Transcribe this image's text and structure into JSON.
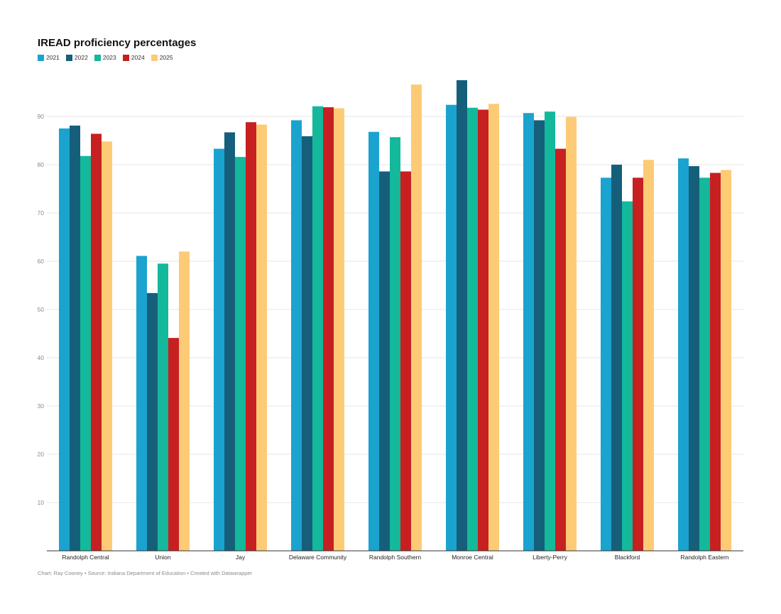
{
  "chart_data": {
    "type": "bar",
    "title": "IREAD proficiency percentages",
    "categories": [
      "Randolph Central",
      "Union",
      "Jay",
      "Delaware Community",
      "Randolph Southern",
      "Monroe Central",
      "Liberty-Perry",
      "Blackford",
      "Randolph Eastern"
    ],
    "series": [
      {
        "name": "2021",
        "color": "#1ba3cf",
        "values": [
          87.5,
          61.1,
          83.3,
          89.2,
          86.8,
          92.4,
          90.7,
          77.3,
          81.3
        ]
      },
      {
        "name": "2022",
        "color": "#155f7b",
        "values": [
          88.1,
          53.4,
          86.7,
          85.9,
          78.6,
          97.5,
          89.2,
          80.0,
          79.7
        ]
      },
      {
        "name": "2023",
        "color": "#14b89b",
        "values": [
          81.8,
          59.5,
          81.6,
          92.1,
          85.7,
          91.8,
          91.0,
          72.4,
          77.3
        ]
      },
      {
        "name": "2024",
        "color": "#c72020",
        "values": [
          86.4,
          44.1,
          88.8,
          91.9,
          78.6,
          91.4,
          83.3,
          77.3,
          78.3
        ]
      },
      {
        "name": "2025",
        "color": "#fdcb75",
        "values": [
          84.8,
          62.0,
          88.3,
          91.7,
          96.6,
          92.6,
          89.9,
          81.0,
          78.9
        ]
      }
    ],
    "yticks": [
      10,
      20,
      30,
      40,
      50,
      60,
      70,
      80,
      90
    ],
    "ylim": [
      0,
      100
    ],
    "grid": true,
    "legend": "top-left"
  },
  "footer": "Chart: Ray Cooney • Source: Indiana Department of Education • Created with Datawrapper"
}
